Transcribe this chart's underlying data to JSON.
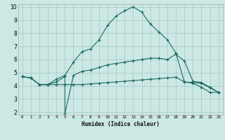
{
  "title": "",
  "xlabel": "Humidex (Indice chaleur)",
  "bg_color": "#cce8e4",
  "grid_color": "#aaccc8",
  "line_color": "#1a6b60",
  "xlim": [
    -0.5,
    23.5
  ],
  "ylim": [
    1.8,
    10.2
  ],
  "xticks": [
    0,
    1,
    2,
    3,
    4,
    5,
    6,
    7,
    8,
    9,
    10,
    11,
    12,
    13,
    14,
    15,
    16,
    17,
    18,
    19,
    20,
    21,
    22,
    23
  ],
  "yticks": [
    2,
    3,
    4,
    5,
    6,
    7,
    8,
    9,
    10
  ],
  "series1_x": [
    0,
    1,
    2,
    3,
    4,
    5,
    6,
    7,
    8,
    9,
    10,
    11,
    12,
    13,
    14,
    15,
    16,
    17,
    18,
    19,
    20,
    21,
    22,
    23
  ],
  "series1_y": [
    4.7,
    4.6,
    4.1,
    4.1,
    4.5,
    4.8,
    5.8,
    6.6,
    6.8,
    7.5,
    8.6,
    9.3,
    9.7,
    10.0,
    9.6,
    8.7,
    8.1,
    7.5,
    6.5,
    4.3,
    4.2,
    3.9,
    3.5,
    3.5
  ],
  "series2_x": [
    0,
    1,
    2,
    3,
    4,
    5,
    5,
    6,
    7,
    8,
    9,
    10,
    11,
    12,
    13,
    14,
    15,
    16,
    17,
    18,
    19,
    20,
    21,
    22,
    23
  ],
  "series2_y": [
    4.7,
    4.6,
    4.1,
    4.1,
    4.3,
    4.7,
    1.9,
    4.8,
    5.1,
    5.2,
    5.4,
    5.6,
    5.7,
    5.8,
    5.9,
    6.0,
    6.1,
    6.1,
    6.0,
    6.4,
    5.9,
    4.35,
    4.25,
    3.9,
    3.5
  ],
  "series3_x": [
    0,
    1,
    2,
    3,
    4,
    5,
    6,
    7,
    8,
    9,
    10,
    11,
    12,
    13,
    14,
    15,
    16,
    17,
    18,
    19,
    20,
    21,
    22,
    23
  ],
  "series3_y": [
    4.7,
    4.6,
    4.1,
    4.1,
    4.1,
    4.1,
    4.1,
    4.1,
    4.15,
    4.2,
    4.25,
    4.3,
    4.35,
    4.4,
    4.45,
    4.5,
    4.55,
    4.6,
    4.65,
    4.3,
    4.25,
    4.2,
    3.85,
    3.5
  ]
}
